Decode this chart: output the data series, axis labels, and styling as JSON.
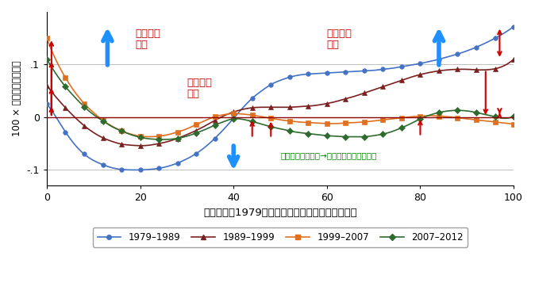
{
  "title": "",
  "xlabel": "スキル度（1979年の平均対数賃金にランク付け）",
  "ylabel": "100 × 雇用シェアの変化",
  "xlim": [
    0,
    100
  ],
  "ylim": [
    -0.13,
    0.2
  ],
  "yticks": [
    -0.1,
    0,
    0.1
  ],
  "ytick_labels": [
    "-.1",
    "0",
    ".1"
  ],
  "xticks": [
    0,
    20,
    40,
    60,
    80,
    100
  ],
  "series": [
    {
      "label": "1979–1989",
      "color": "#4472C4",
      "marker": "o",
      "x": [
        0,
        2,
        4,
        6,
        8,
        10,
        12,
        14,
        16,
        18,
        20,
        22,
        24,
        26,
        28,
        30,
        32,
        34,
        36,
        38,
        40,
        42,
        44,
        46,
        48,
        50,
        52,
        54,
        56,
        58,
        60,
        62,
        64,
        66,
        68,
        70,
        72,
        74,
        76,
        78,
        80,
        82,
        84,
        86,
        88,
        90,
        92,
        94,
        96,
        98,
        100
      ],
      "y": [
        0.025,
        0.0,
        -0.028,
        -0.052,
        -0.07,
        -0.082,
        -0.09,
        -0.096,
        -0.099,
        -0.1,
        -0.1,
        -0.099,
        -0.097,
        -0.093,
        -0.087,
        -0.079,
        -0.069,
        -0.056,
        -0.04,
        -0.022,
        -0.002,
        0.018,
        0.036,
        0.05,
        0.062,
        0.07,
        0.076,
        0.08,
        0.082,
        0.083,
        0.084,
        0.085,
        0.086,
        0.087,
        0.088,
        0.089,
        0.091,
        0.093,
        0.096,
        0.099,
        0.102,
        0.106,
        0.11,
        0.115,
        0.12,
        0.126,
        0.133,
        0.141,
        0.15,
        0.16,
        0.172
      ]
    },
    {
      "label": "1989–1999",
      "color": "#7B2020",
      "marker": "^",
      "x": [
        0,
        2,
        4,
        6,
        8,
        10,
        12,
        14,
        16,
        18,
        20,
        22,
        24,
        26,
        28,
        30,
        32,
        34,
        36,
        38,
        40,
        42,
        44,
        46,
        48,
        50,
        52,
        54,
        56,
        58,
        60,
        62,
        64,
        66,
        68,
        70,
        72,
        74,
        76,
        78,
        80,
        82,
        84,
        86,
        88,
        90,
        92,
        94,
        96,
        98,
        100
      ],
      "y": [
        0.06,
        0.038,
        0.018,
        0.0,
        -0.016,
        -0.029,
        -0.039,
        -0.046,
        -0.051,
        -0.053,
        -0.054,
        -0.053,
        -0.05,
        -0.046,
        -0.04,
        -0.033,
        -0.025,
        -0.016,
        -0.006,
        0.003,
        0.01,
        0.015,
        0.018,
        0.019,
        0.019,
        0.019,
        0.019,
        0.02,
        0.021,
        0.023,
        0.026,
        0.03,
        0.035,
        0.04,
        0.046,
        0.052,
        0.058,
        0.064,
        0.07,
        0.076,
        0.081,
        0.085,
        0.088,
        0.09,
        0.091,
        0.091,
        0.09,
        0.09,
        0.092,
        0.098,
        0.11
      ]
    },
    {
      "label": "1999–2007",
      "color": "#E07020",
      "marker": "s",
      "x": [
        0,
        2,
        4,
        6,
        8,
        10,
        12,
        14,
        16,
        18,
        20,
        22,
        24,
        26,
        28,
        30,
        32,
        34,
        36,
        38,
        40,
        42,
        44,
        46,
        48,
        50,
        52,
        54,
        56,
        58,
        60,
        62,
        64,
        66,
        68,
        70,
        72,
        74,
        76,
        78,
        80,
        82,
        84,
        86,
        88,
        90,
        92,
        94,
        96,
        98,
        100
      ],
      "y": [
        0.15,
        0.108,
        0.075,
        0.048,
        0.026,
        0.009,
        -0.006,
        -0.017,
        -0.026,
        -0.032,
        -0.036,
        -0.037,
        -0.036,
        -0.033,
        -0.028,
        -0.022,
        -0.014,
        -0.006,
        0.001,
        0.005,
        0.007,
        0.006,
        0.004,
        0.001,
        -0.002,
        -0.005,
        -0.007,
        -0.009,
        -0.01,
        -0.011,
        -0.012,
        -0.012,
        -0.011,
        -0.01,
        -0.009,
        -0.007,
        -0.005,
        -0.003,
        -0.001,
        0.001,
        0.002,
        0.003,
        0.002,
        0.001,
        -0.001,
        -0.003,
        -0.005,
        -0.007,
        -0.009,
        -0.011,
        -0.013
      ]
    },
    {
      "label": "2007–2012",
      "color": "#2E6B2E",
      "marker": "D",
      "x": [
        0,
        2,
        4,
        6,
        8,
        10,
        12,
        14,
        16,
        18,
        20,
        22,
        24,
        26,
        28,
        30,
        32,
        34,
        36,
        38,
        40,
        42,
        44,
        46,
        48,
        50,
        52,
        54,
        56,
        58,
        60,
        62,
        64,
        66,
        68,
        70,
        72,
        74,
        76,
        78,
        80,
        82,
        84,
        86,
        88,
        90,
        92,
        94,
        96,
        98,
        100
      ],
      "y": [
        0.11,
        0.082,
        0.058,
        0.038,
        0.02,
        0.005,
        -0.007,
        -0.018,
        -0.026,
        -0.033,
        -0.038,
        -0.041,
        -0.042,
        -0.042,
        -0.04,
        -0.036,
        -0.03,
        -0.023,
        -0.015,
        -0.008,
        -0.003,
        -0.004,
        -0.008,
        -0.013,
        -0.018,
        -0.022,
        -0.026,
        -0.029,
        -0.031,
        -0.033,
        -0.035,
        -0.036,
        -0.037,
        -0.037,
        -0.037,
        -0.035,
        -0.032,
        -0.027,
        -0.02,
        -0.012,
        -0.003,
        0.004,
        0.009,
        0.012,
        0.013,
        0.012,
        0.009,
        0.005,
        0.001,
        -0.002,
        0.002
      ]
    }
  ],
  "zero_line_color": "#8B0000",
  "grid_color": "#C0C0C0",
  "red": "#CC0000",
  "green": "#008000",
  "blue": "#1E90FF",
  "bg_color": "#FFFFFF"
}
